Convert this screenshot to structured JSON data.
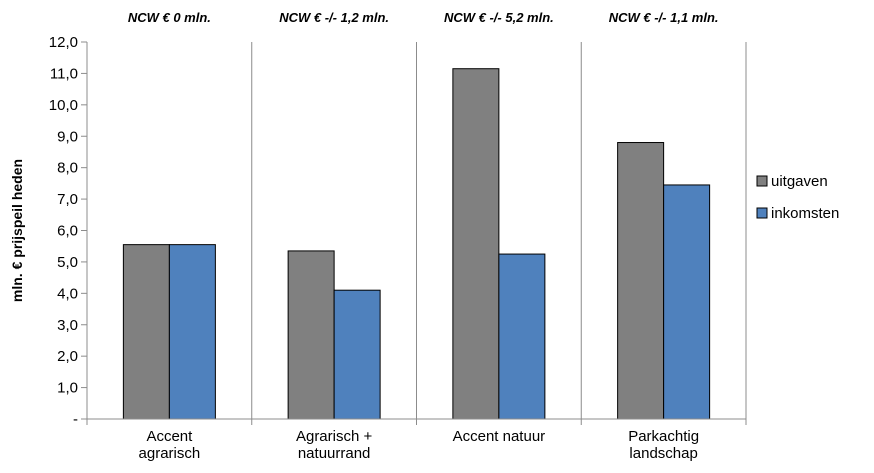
{
  "chart_data": {
    "type": "bar",
    "categories": [
      [
        "Accent",
        "agrarisch"
      ],
      [
        "Agrarisch +",
        "natuurrand"
      ],
      [
        "Accent natuur"
      ],
      [
        "Parkachtig",
        "landschap"
      ]
    ],
    "series": [
      {
        "name": "uitgaven",
        "color": "#808080",
        "values": [
          5.55,
          5.35,
          11.15,
          8.8
        ]
      },
      {
        "name": "inkomsten",
        "color": "#4f81bd",
        "values": [
          5.55,
          4.1,
          5.25,
          7.45
        ]
      }
    ],
    "annotations": [
      "NCW € 0 mln.",
      "NCW € -/-  1,2 mln.",
      "NCW € -/-  5,2 mln.",
      "NCW € -/-  1,1 mln."
    ],
    "ylabel": "mln. € prijspeil heden",
    "xlabel": "",
    "ylim": [
      0,
      12
    ],
    "ytick_labels": [
      "-",
      "1,0",
      "2,0",
      "3,0",
      "4,0",
      "5,0",
      "6,0",
      "7,0",
      "8,0",
      "9,0",
      "10,0",
      "11,0",
      "12,0"
    ],
    "grid": "vertical",
    "legend_position": "right"
  }
}
